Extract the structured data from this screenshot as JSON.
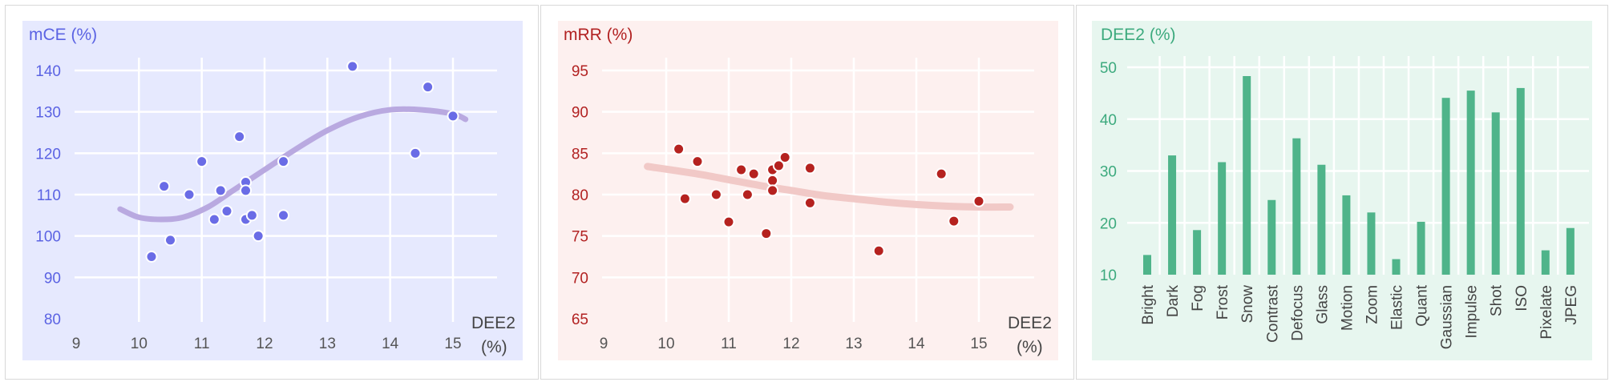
{
  "chart_data": [
    {
      "type": "scatter",
      "panel": "mce",
      "ylabel": "mCE (%)",
      "xlabel_main": "DEE",
      "xlabel_sub": "2",
      "xlabel_unit": "(%)",
      "xlim": [
        9,
        15.7
      ],
      "ylim": [
        80,
        147
      ],
      "xticks": [
        "9",
        "10",
        "11",
        "12",
        "13",
        "14",
        "15"
      ],
      "yticks": [
        "80",
        "90",
        "100",
        "110",
        "120",
        "130",
        "140"
      ],
      "grid": true,
      "colors": {
        "background": "#e6e9fe",
        "point": "#6a6ce6",
        "trend": "#b9a9e0",
        "axis_text": "#5b63e3"
      },
      "points": [
        {
          "x": 10.2,
          "y": 95
        },
        {
          "x": 10.4,
          "y": 112
        },
        {
          "x": 10.5,
          "y": 99
        },
        {
          "x": 10.8,
          "y": 110
        },
        {
          "x": 11.0,
          "y": 118
        },
        {
          "x": 11.2,
          "y": 104
        },
        {
          "x": 11.3,
          "y": 111
        },
        {
          "x": 11.4,
          "y": 106
        },
        {
          "x": 11.6,
          "y": 124
        },
        {
          "x": 11.7,
          "y": 113
        },
        {
          "x": 11.7,
          "y": 111
        },
        {
          "x": 11.7,
          "y": 104
        },
        {
          "x": 11.8,
          "y": 105
        },
        {
          "x": 11.9,
          "y": 100
        },
        {
          "x": 12.3,
          "y": 118
        },
        {
          "x": 12.3,
          "y": 105
        },
        {
          "x": 13.4,
          "y": 141
        },
        {
          "x": 14.4,
          "y": 120
        },
        {
          "x": 14.6,
          "y": 136
        },
        {
          "x": 15.0,
          "y": 129
        }
      ],
      "trend": [
        {
          "x": 9.7,
          "y": 106.5
        },
        {
          "x": 10.0,
          "y": 104.5
        },
        {
          "x": 10.35,
          "y": 104.0
        },
        {
          "x": 10.7,
          "y": 104.5
        },
        {
          "x": 11.1,
          "y": 107
        },
        {
          "x": 11.5,
          "y": 111
        },
        {
          "x": 12.0,
          "y": 116
        },
        {
          "x": 12.5,
          "y": 121
        },
        {
          "x": 13.0,
          "y": 125.5
        },
        {
          "x": 13.5,
          "y": 128.8
        },
        {
          "x": 14.0,
          "y": 130.5
        },
        {
          "x": 14.5,
          "y": 130.5
        },
        {
          "x": 15.0,
          "y": 129.5
        },
        {
          "x": 15.2,
          "y": 128.2
        }
      ]
    },
    {
      "type": "scatter",
      "panel": "mrr",
      "ylabel": "mRR (%)",
      "xlabel_main": "DEE",
      "xlabel_sub": "2",
      "xlabel_unit": "(%)",
      "xlim": [
        9,
        16
      ],
      "ylim": [
        65,
        98.5
      ],
      "xticks": [
        "9",
        "10",
        "11",
        "12",
        "13",
        "14",
        "15"
      ],
      "yticks": [
        "65",
        "70",
        "75",
        "80",
        "85",
        "90",
        "95"
      ],
      "grid": true,
      "colors": {
        "background": "#fdf0ef",
        "point": "#b5221f",
        "trend": "#f1c9c7",
        "axis_text": "#b22222"
      },
      "points": [
        {
          "x": 10.2,
          "y": 85.5
        },
        {
          "x": 10.3,
          "y": 79.5
        },
        {
          "x": 10.5,
          "y": 84
        },
        {
          "x": 10.8,
          "y": 80
        },
        {
          "x": 11.0,
          "y": 76.7
        },
        {
          "x": 11.2,
          "y": 83
        },
        {
          "x": 11.3,
          "y": 80
        },
        {
          "x": 11.4,
          "y": 82.5
        },
        {
          "x": 11.6,
          "y": 75.3
        },
        {
          "x": 11.7,
          "y": 83
        },
        {
          "x": 11.7,
          "y": 81.7
        },
        {
          "x": 11.7,
          "y": 80.5
        },
        {
          "x": 11.8,
          "y": 83.5
        },
        {
          "x": 11.9,
          "y": 84.5
        },
        {
          "x": 12.3,
          "y": 83.2
        },
        {
          "x": 12.3,
          "y": 79
        },
        {
          "x": 13.4,
          "y": 73.2
        },
        {
          "x": 14.4,
          "y": 82.5
        },
        {
          "x": 14.6,
          "y": 76.8
        },
        {
          "x": 15.0,
          "y": 79.2
        }
      ],
      "trend": [
        {
          "x": 9.7,
          "y": 83.4
        },
        {
          "x": 10.5,
          "y": 82.5
        },
        {
          "x": 11.0,
          "y": 81.8
        },
        {
          "x": 11.5,
          "y": 81.1
        },
        {
          "x": 12.0,
          "y": 80.5
        },
        {
          "x": 12.5,
          "y": 79.9
        },
        {
          "x": 13.0,
          "y": 79.5
        },
        {
          "x": 13.5,
          "y": 79.1
        },
        {
          "x": 14.0,
          "y": 78.8
        },
        {
          "x": 14.5,
          "y": 78.6
        },
        {
          "x": 15.0,
          "y": 78.5
        },
        {
          "x": 15.5,
          "y": 78.5
        }
      ]
    },
    {
      "type": "bar",
      "panel": "dee",
      "ylabel_main": "DEE",
      "ylabel_sub": "2",
      "ylabel_unit": "(%)",
      "ylim": [
        10,
        52
      ],
      "yticks": [
        "10",
        "20",
        "30",
        "40",
        "50"
      ],
      "grid": true,
      "colors": {
        "background": "#e7f6ef",
        "bar": "#4fb48a",
        "axis_text": "#3daa7e"
      },
      "categories": [
        "Bright",
        "Dark",
        "Fog",
        "Frost",
        "Snow",
        "Contrast",
        "Defocus",
        "Glass",
        "Motion",
        "Zoom",
        "Elastic",
        "Quant",
        "Gaussian",
        "Impulse",
        "Shot",
        "ISO",
        "Pixelate",
        "JPEG"
      ],
      "values": [
        13.8,
        33.0,
        18.6,
        31.7,
        48.3,
        24.4,
        36.3,
        31.2,
        25.3,
        22.0,
        13.0,
        20.2,
        44.1,
        45.5,
        41.3,
        46.0,
        14.7,
        19.0
      ]
    }
  ]
}
